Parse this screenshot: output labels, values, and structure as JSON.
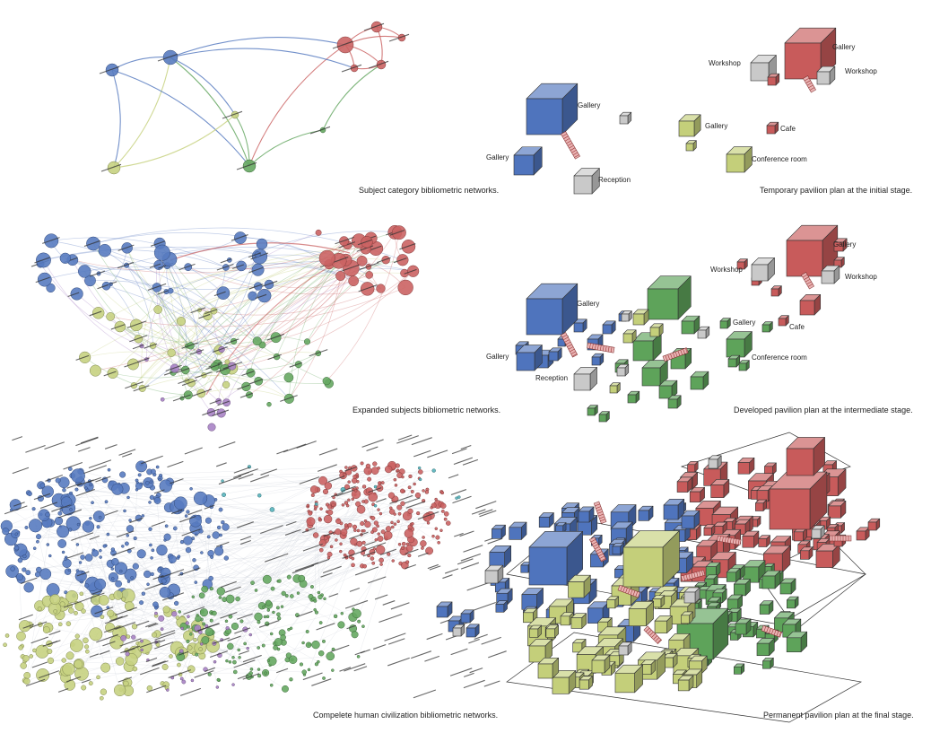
{
  "captions": {
    "network_1": "Subject category bibliometric networks.",
    "plan_1": "Temporary pavilion plan at the initial stage.",
    "network_2": "Expanded subjects bibliometric networks.",
    "plan_2": "Developed pavilion plan at the intermediate stage.",
    "network_3": "Compelete human civilization bibliometric networks.",
    "plan_3": "Permanent pavilion plan at the final stage."
  },
  "room_labels": {
    "gallery": "Gallery",
    "workshop": "Workshop",
    "cafe": "Cafe",
    "conference_room": "Conference room",
    "reception": "Reception"
  },
  "colors": {
    "blue": "#4f74bd",
    "red": "#c85b5b",
    "green": "#5ea35a",
    "yellow": "#c4cf7a",
    "purple": "#a47cc2",
    "grey": "#c9c9c9",
    "teal": "#4fb0b8"
  }
}
